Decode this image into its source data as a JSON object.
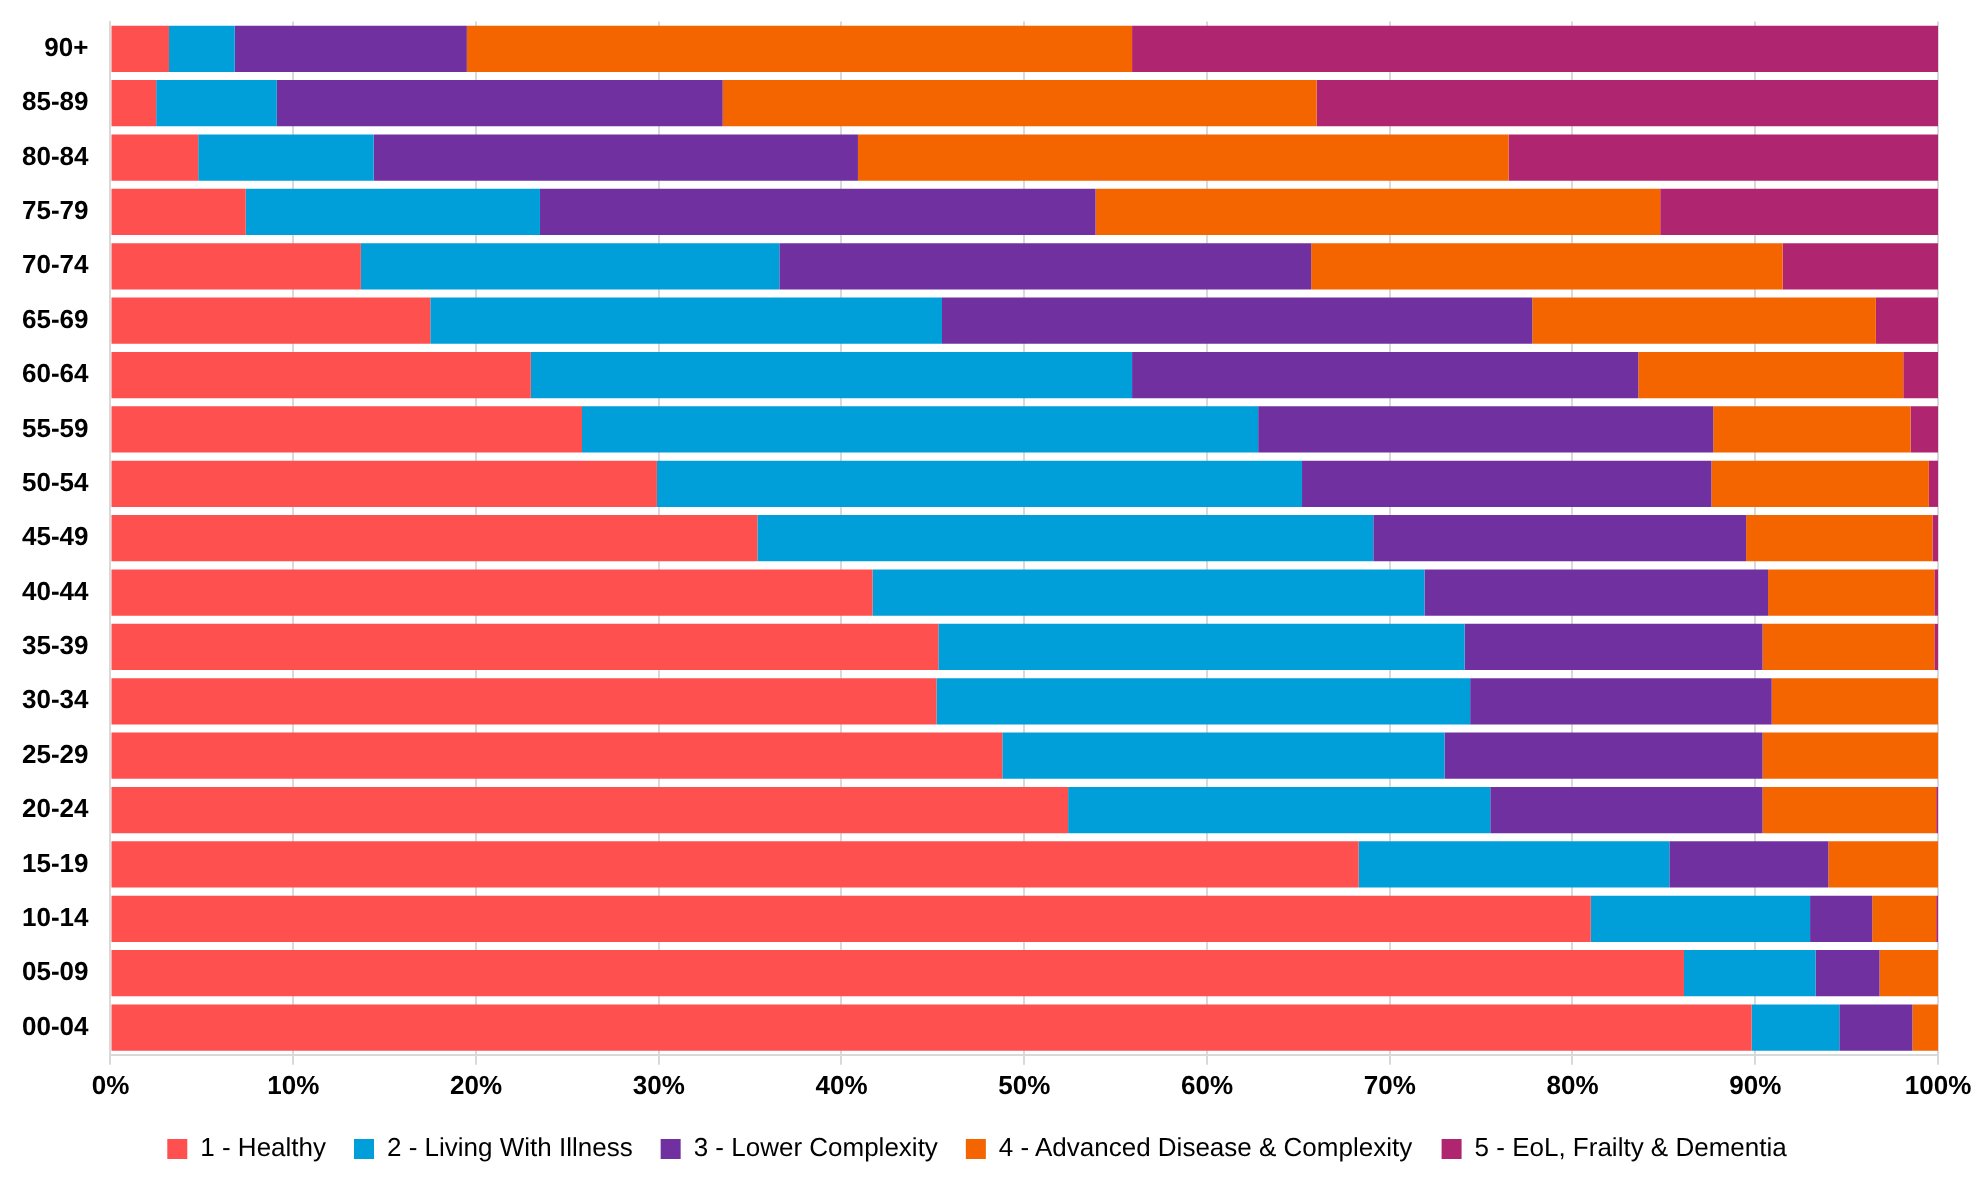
{
  "chart_data": {
    "type": "bar",
    "orientation": "horizontal",
    "stacked": true,
    "grid": "x",
    "legend": "bottom",
    "categories": [
      "90+",
      "85-89",
      "80-84",
      "75-79",
      "70-74",
      "65-69",
      "60-64",
      "55-59",
      "50-54",
      "45-49",
      "40-44",
      "35-39",
      "30-34",
      "25-29",
      "20-24",
      "15-19",
      "10-14",
      "05-09",
      "00-04"
    ],
    "xlim": [
      0,
      100
    ],
    "xticks": [
      {
        "value": 0,
        "label": "0%"
      },
      {
        "value": 10,
        "label": "10%"
      },
      {
        "value": 20,
        "label": "20%"
      },
      {
        "value": 30,
        "label": "30%"
      },
      {
        "value": 40,
        "label": "40%"
      },
      {
        "value": 50,
        "label": "50%"
      },
      {
        "value": 60,
        "label": "60%"
      },
      {
        "value": 70,
        "label": "70%"
      },
      {
        "value": 80,
        "label": "80%"
      },
      {
        "value": 90,
        "label": "90%"
      },
      {
        "value": 100,
        "label": "100%"
      }
    ],
    "series": [
      {
        "name": "1 - Healthy",
        "color": "#ff5050",
        "values": [
          3.2,
          2.5,
          4.8,
          7.4,
          13.7,
          17.5,
          23.0,
          25.8,
          29.9,
          35.4,
          41.7,
          45.3,
          45.2,
          48.8,
          52.4,
          68.3,
          81.0,
          86.1,
          89.8
        ]
      },
      {
        "name": "2 - Living With Illness",
        "color": "#009fd9",
        "values": [
          3.6,
          6.6,
          9.6,
          16.1,
          22.9,
          28.0,
          32.9,
          37.0,
          35.3,
          33.7,
          30.2,
          28.8,
          29.2,
          24.2,
          23.1,
          17.0,
          12.0,
          7.2,
          4.8
        ]
      },
      {
        "name": "3 - Lower Complexity",
        "color": "#7030a0",
        "values": [
          12.7,
          24.4,
          26.5,
          30.4,
          29.1,
          32.3,
          27.7,
          24.9,
          22.4,
          20.4,
          18.8,
          16.3,
          16.5,
          17.4,
          14.9,
          8.7,
          3.4,
          3.5,
          4.0
        ]
      },
      {
        "name": "4 - Advanced Disease & Complexity",
        "color": "#f46500",
        "values": [
          36.4,
          32.5,
          35.6,
          30.9,
          25.8,
          18.8,
          14.5,
          10.8,
          11.9,
          10.2,
          9.1,
          9.4,
          9.1,
          9.6,
          9.5,
          6.0,
          3.5,
          3.2,
          1.4
        ]
      },
      {
        "name": "5 - EoL, Frailty & Dementia",
        "color": "#b0256f",
        "values": [
          44.1,
          34.0,
          23.5,
          15.2,
          8.5,
          3.4,
          1.9,
          1.5,
          0.5,
          0.3,
          0.2,
          0.2,
          0,
          0,
          0.1,
          0,
          0.1,
          0,
          0
        ]
      }
    ]
  }
}
